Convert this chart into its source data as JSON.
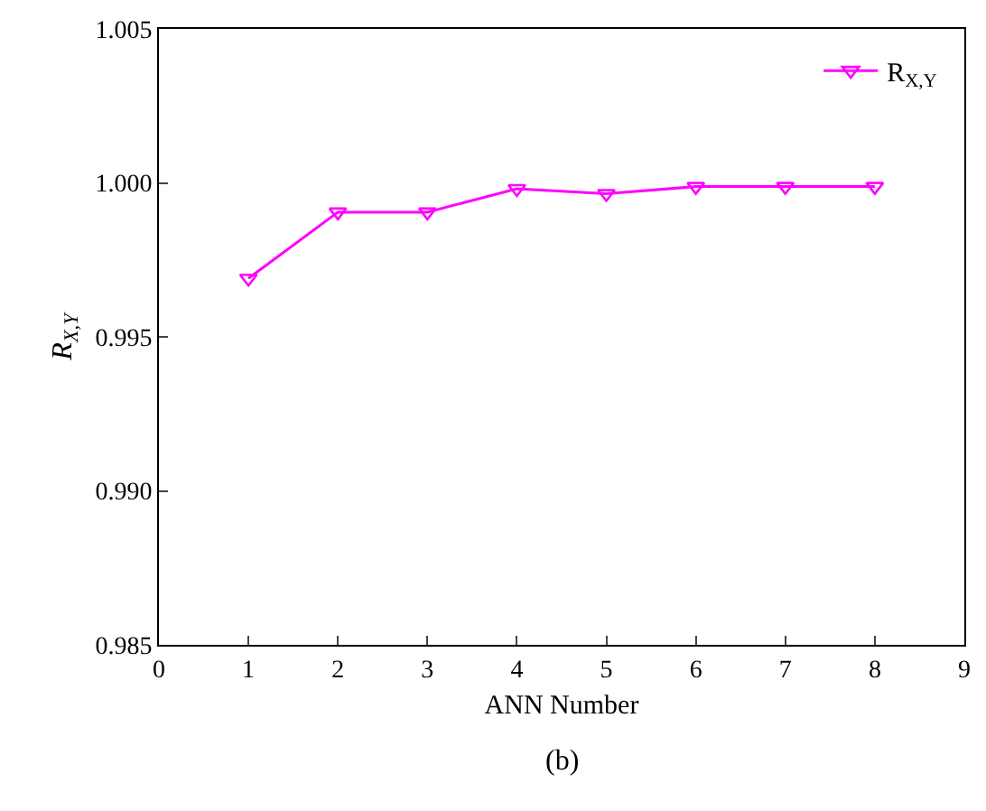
{
  "chart_data": {
    "type": "line",
    "xlabel": "ANN Number",
    "ylabel": "R$_{X,Y}$",
    "annotations": [
      "(b)"
    ],
    "x": [
      1,
      2,
      3,
      4,
      5,
      6,
      7,
      8
    ],
    "series": [
      {
        "name": "R$_{X,Y}$",
        "color": "#ff00ff",
        "values": [
          0.9969,
          0.99905,
          0.99905,
          0.99981,
          0.99965,
          0.99988,
          0.99988,
          0.99988
        ]
      }
    ],
    "xlim": [
      0,
      9
    ],
    "xticks": [
      0,
      1,
      2,
      3,
      4,
      5,
      6,
      7,
      8,
      9
    ],
    "ylim": [
      0.985,
      1.005
    ],
    "yticks": [
      {
        "value": 0.985,
        "label": "0.985"
      },
      {
        "value": 0.99,
        "label": "0.990"
      },
      {
        "value": 0.995,
        "label": "0.995"
      },
      {
        "value": 1,
        "label": "1.000"
      },
      {
        "value": 1.005,
        "label": "1.005"
      }
    ],
    "grid": false,
    "legend": "top right",
    "marker": "triangle",
    "line_style": "solid"
  }
}
